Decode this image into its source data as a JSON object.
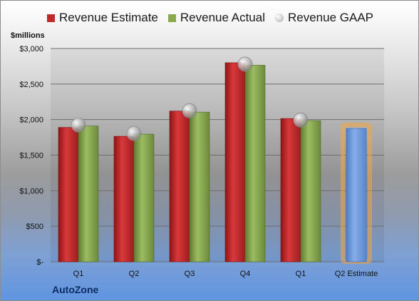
{
  "chart_data": {
    "type": "bar",
    "categories": [
      "Q1",
      "Q2",
      "Q3",
      "Q4",
      "Q1",
      "Q2 Estimate"
    ],
    "series": [
      {
        "name": "Revenue Estimate",
        "color": "#c0282a",
        "values": [
          1890,
          1765,
          2120,
          2800,
          2015,
          null
        ]
      },
      {
        "name": "Revenue Actual",
        "color": "#8aa84f",
        "values": [
          1910,
          1795,
          2105,
          2765,
          1985,
          null
        ]
      },
      {
        "name": "Revenue GAAP",
        "color": "#b7b7b7",
        "style": "marker",
        "values": [
          1925,
          1805,
          2125,
          2780,
          1995,
          null
        ]
      }
    ],
    "estimate_bar": {
      "category": "Q2 Estimate",
      "value": 1875,
      "color": "#6f9be0",
      "glow": "#f5a63c"
    },
    "ylabel": "$millions",
    "ylim": [
      0,
      3000
    ],
    "yticks": [
      0,
      500,
      1000,
      1500,
      2000,
      2500,
      3000
    ],
    "ytick_labels": [
      "$-",
      "$500",
      "$1,000",
      "$1,500",
      "$2,000",
      "$2,500",
      "$3,000"
    ],
    "legend_position": "top",
    "grid": true
  },
  "legend": {
    "estimate": "Revenue Estimate",
    "actual": "Revenue Actual",
    "gaap": "Revenue GAAP"
  },
  "units_label": "$millions",
  "company": "AutoZone"
}
